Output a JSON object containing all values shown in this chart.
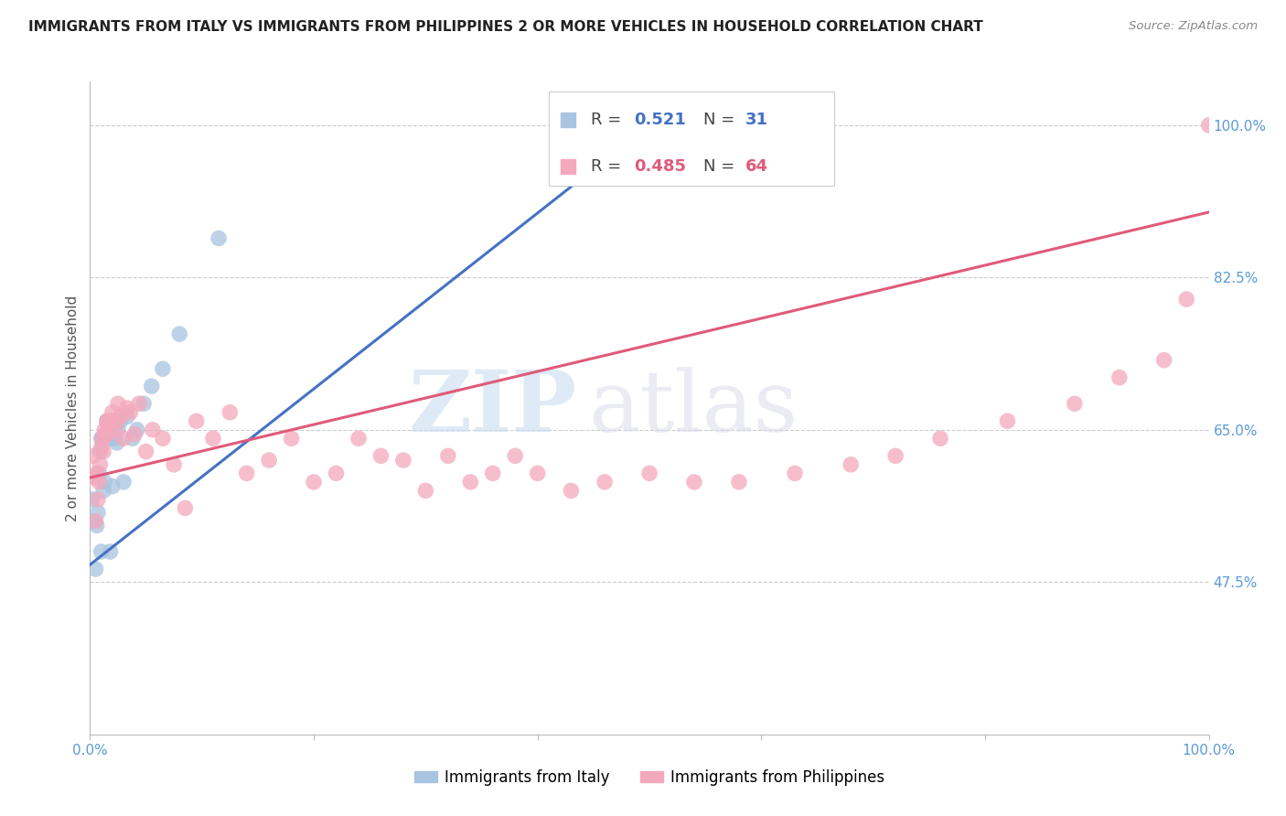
{
  "title": "IMMIGRANTS FROM ITALY VS IMMIGRANTS FROM PHILIPPINES 2 OR MORE VEHICLES IN HOUSEHOLD CORRELATION CHART",
  "source": "Source: ZipAtlas.com",
  "ylabel": "2 or more Vehicles in Household",
  "xlim": [
    0.0,
    1.0
  ],
  "ylim": [
    0.3,
    1.05
  ],
  "y_tick_labels_right": [
    "47.5%",
    "65.0%",
    "82.5%",
    "100.0%"
  ],
  "y_tick_values_right": [
    0.475,
    0.65,
    0.825,
    1.0
  ],
  "R_italy": 0.521,
  "N_italy": 31,
  "R_philippines": 0.485,
  "N_philippines": 64,
  "italy_color": "#A8C4E0",
  "philippines_color": "#F4A8BC",
  "italy_line_color": "#4472C4",
  "philippines_line_color": "#E05A7A",
  "background_color": "#FFFFFF",
  "watermark_zip": "ZIP",
  "watermark_atlas": "atlas",
  "italy_x": [
    0.002,
    0.003,
    0.005,
    0.006,
    0.007,
    0.008,
    0.009,
    0.01,
    0.01,
    0.011,
    0.012,
    0.013,
    0.014,
    0.015,
    0.016,
    0.017,
    0.018,
    0.02,
    0.022,
    0.024,
    0.025,
    0.027,
    0.03,
    0.033,
    0.038,
    0.042,
    0.048,
    0.055,
    0.065,
    0.08,
    0.115
  ],
  "italy_y": [
    0.57,
    0.545,
    0.49,
    0.54,
    0.555,
    0.6,
    0.625,
    0.64,
    0.51,
    0.64,
    0.58,
    0.59,
    0.645,
    0.66,
    0.65,
    0.64,
    0.51,
    0.585,
    0.64,
    0.635,
    0.65,
    0.66,
    0.59,
    0.665,
    0.64,
    0.65,
    0.68,
    0.7,
    0.72,
    0.76,
    0.87
  ],
  "phil_x": [
    0.003,
    0.004,
    0.005,
    0.006,
    0.007,
    0.008,
    0.009,
    0.01,
    0.011,
    0.012,
    0.013,
    0.014,
    0.015,
    0.016,
    0.017,
    0.018,
    0.019,
    0.02,
    0.022,
    0.024,
    0.025,
    0.027,
    0.03,
    0.033,
    0.036,
    0.04,
    0.044,
    0.05,
    0.056,
    0.065,
    0.075,
    0.085,
    0.095,
    0.11,
    0.125,
    0.14,
    0.16,
    0.18,
    0.2,
    0.22,
    0.24,
    0.26,
    0.28,
    0.3,
    0.32,
    0.34,
    0.36,
    0.38,
    0.4,
    0.43,
    0.46,
    0.5,
    0.54,
    0.58,
    0.63,
    0.68,
    0.72,
    0.76,
    0.82,
    0.88,
    0.92,
    0.96,
    0.98,
    1.0
  ],
  "phil_y": [
    0.62,
    0.595,
    0.545,
    0.6,
    0.57,
    0.59,
    0.61,
    0.63,
    0.64,
    0.625,
    0.65,
    0.645,
    0.66,
    0.645,
    0.655,
    0.66,
    0.66,
    0.67,
    0.65,
    0.66,
    0.68,
    0.665,
    0.64,
    0.675,
    0.67,
    0.645,
    0.68,
    0.625,
    0.65,
    0.64,
    0.61,
    0.56,
    0.66,
    0.64,
    0.67,
    0.6,
    0.615,
    0.64,
    0.59,
    0.6,
    0.64,
    0.62,
    0.615,
    0.58,
    0.62,
    0.59,
    0.6,
    0.62,
    0.6,
    0.58,
    0.59,
    0.6,
    0.59,
    0.59,
    0.6,
    0.61,
    0.62,
    0.64,
    0.66,
    0.68,
    0.71,
    0.73,
    0.8,
    1.0
  ],
  "italy_line_x0": 0.0,
  "italy_line_y0": 0.495,
  "italy_line_x1": 0.5,
  "italy_line_y1": 1.0,
  "phil_line_x0": 0.0,
  "phil_line_y0": 0.595,
  "phil_line_x1": 1.0,
  "phil_line_y1": 0.9
}
